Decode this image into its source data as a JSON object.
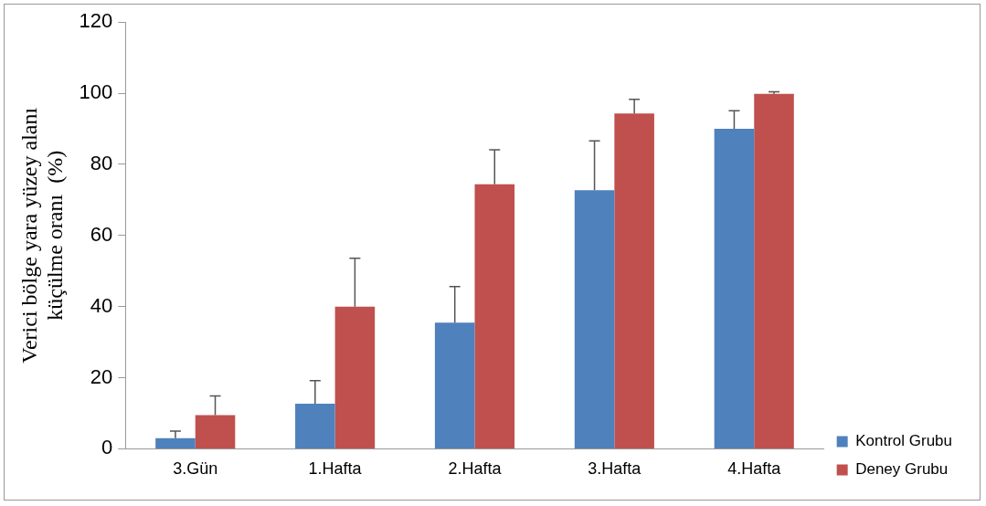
{
  "chart_data": {
    "type": "bar",
    "ylabel": "Verici bölge yara yüzey alanı\nküçülme oranı  (%)",
    "categories": [
      "3.Gün",
      "1.Hafta",
      "2.Hafta",
      "3.Hafta",
      "4.Hafta"
    ],
    "series": [
      {
        "name": "Kontrol Grubu",
        "color": "#4f81bd",
        "values": [
          3,
          12.7,
          35.5,
          72.7,
          90
        ],
        "errors": [
          2,
          6.5,
          10.1,
          13.9,
          5.1
        ]
      },
      {
        "name": "Deney Grubu",
        "color": "#c0504d",
        "values": [
          9.5,
          40,
          74.4,
          94.3,
          99.8
        ],
        "errors": [
          5.4,
          13.6,
          9.7,
          4,
          0.6
        ]
      }
    ],
    "ylim": [
      0,
      120
    ],
    "yticks": [
      0,
      20,
      40,
      60,
      80,
      100,
      120
    ],
    "grid": false,
    "legend": "right"
  }
}
